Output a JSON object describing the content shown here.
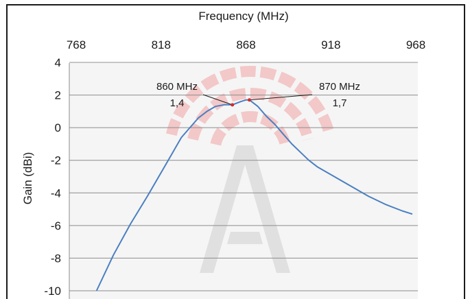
{
  "chart_data": {
    "type": "line",
    "title": "",
    "xlabel": "Frequency (MHz)",
    "ylabel": "Gain (dBi)",
    "xlim": [
      768,
      968
    ],
    "ylim": [
      -10,
      4
    ],
    "x_ticks": [
      "768",
      "818",
      "868",
      "918",
      "968"
    ],
    "y_ticks": [
      "4",
      "2",
      "0",
      "-2",
      "-4",
      "-6",
      "-8",
      "-10"
    ],
    "x_axis_position": "top",
    "grid": "horizontal",
    "legend": "none",
    "series": [
      {
        "color": "#4a7fc1",
        "x": [
          780,
          790,
          800,
          810,
          820,
          830,
          840,
          845,
          850,
          855,
          860,
          865,
          868,
          870,
          875,
          880,
          885,
          890,
          895,
          900,
          905,
          910,
          915,
          920,
          930,
          940,
          950,
          960,
          966
        ],
        "y": [
          -10.0,
          -7.8,
          -5.9,
          -4.2,
          -2.4,
          -0.6,
          0.6,
          1.0,
          1.3,
          1.4,
          1.4,
          1.6,
          1.7,
          1.7,
          1.3,
          0.7,
          0.2,
          -0.4,
          -1.0,
          -1.5,
          -2.0,
          -2.4,
          -2.7,
          -3.0,
          -3.6,
          -4.2,
          -4.7,
          -5.1,
          -5.3
        ]
      }
    ],
    "annotations": [
      {
        "x": 860,
        "y": 1.4,
        "label_line1": "860 MHz",
        "label_line2": "1,4"
      },
      {
        "x": 870,
        "y": 1.7,
        "label_line1": "870 MHz",
        "label_line2": "1,7"
      }
    ],
    "marker_color": "#d42b2b",
    "watermark": {
      "name": "antenna-logo",
      "color": "#f3c8c8"
    }
  }
}
